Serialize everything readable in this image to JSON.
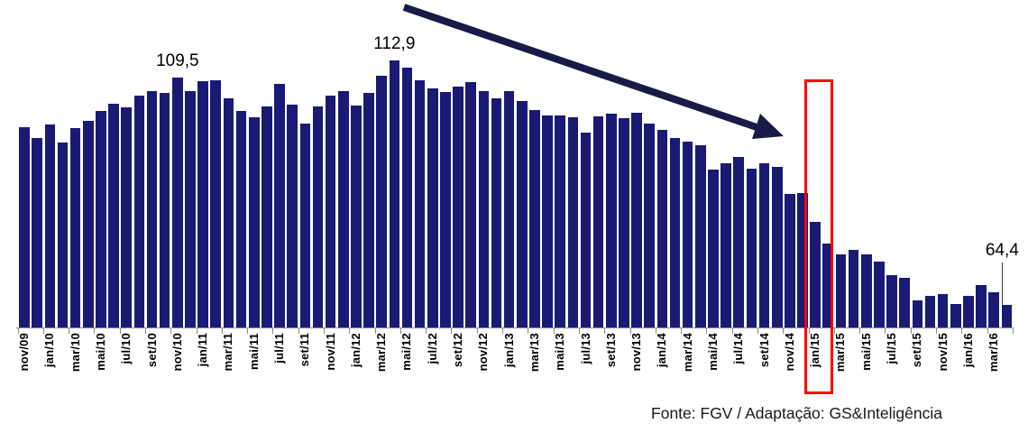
{
  "chart_data": {
    "type": "bar",
    "title": "",
    "xlabel": "",
    "ylabel": "",
    "ylim": [
      60,
      115
    ],
    "grid": false,
    "bar_color": "#1A1A75",
    "axis_color": "#8C8C8C",
    "x": [
      "nov/09",
      "dez/09",
      "jan/10",
      "fev/10",
      "mar/10",
      "abr/10",
      "mai/10",
      "jun/10",
      "jul/10",
      "ago/10",
      "set/10",
      "out/10",
      "nov/10",
      "dez/10",
      "jan/11",
      "fev/11",
      "mar/11",
      "abr/11",
      "mai/11",
      "jun/11",
      "jul/11",
      "ago/11",
      "set/11",
      "out/11",
      "nov/11",
      "dez/11",
      "jan/12",
      "fev/12",
      "mar/12",
      "abr/12",
      "mai/12",
      "jun/12",
      "jul/12",
      "ago/12",
      "set/12",
      "out/12",
      "nov/12",
      "dez/12",
      "jan/13",
      "fev/13",
      "mar/13",
      "abr/13",
      "mai/13",
      "jun/13",
      "jul/13",
      "ago/13",
      "set/13",
      "out/13",
      "nov/13",
      "dez/13",
      "jan/14",
      "fev/14",
      "mar/14",
      "abr/14",
      "mai/14",
      "jun/14",
      "jul/14",
      "ago/14",
      "set/14",
      "out/14",
      "nov/14",
      "dez/14",
      "jan/15",
      "fev/15",
      "mar/15",
      "abr/15",
      "mai/15",
      "jun/15",
      "jul/15",
      "ago/15",
      "set/15",
      "out/15",
      "nov/15",
      "dez/15",
      "jan/16",
      "fev/16",
      "mar/16",
      "abr/16"
    ],
    "values": [
      99.7,
      97.6,
      100.2,
      96.6,
      99.5,
      101.0,
      102.9,
      104.4,
      103.6,
      105.9,
      106.8,
      106.6,
      109.5,
      106.9,
      108.8,
      109.0,
      105.5,
      103.0,
      101.7,
      103.8,
      108.4,
      104.2,
      100.5,
      103.8,
      105.9,
      106.9,
      104.1,
      106.6,
      110.0,
      112.9,
      111.6,
      109.0,
      107.4,
      106.7,
      107.7,
      108.6,
      106.8,
      105.5,
      106.9,
      105.0,
      103.2,
      102.0,
      102.0,
      101.7,
      98.6,
      101.8,
      102.4,
      101.5,
      102.6,
      100.5,
      99.2,
      97.6,
      96.9,
      96.1,
      91.4,
      92.5,
      93.9,
      91.5,
      92.5,
      91.8,
      86.4,
      86.7,
      80.9,
      76.6,
      74.5,
      75.3,
      74.4,
      73.0,
      70.4,
      69.9,
      65.3,
      66.3,
      66.7,
      64.7,
      66.3,
      68.4,
      66.9,
      64.4
    ],
    "tick_label_every": 2,
    "annotations": [
      {
        "index": 12,
        "label": "109,5",
        "leader_line": false
      },
      {
        "index": 29,
        "label": "112,9",
        "leader_line": false
      },
      {
        "index": 77,
        "label": "64,4",
        "leader_line": true
      }
    ],
    "highlight": {
      "month": "jan/15",
      "index": 62,
      "color": "#FE0000"
    },
    "trend_arrow": {
      "direction": "down-right",
      "color": "#171B46"
    },
    "source_note": "Fonte: FGV / Adaptação: GS&Inteligência"
  }
}
